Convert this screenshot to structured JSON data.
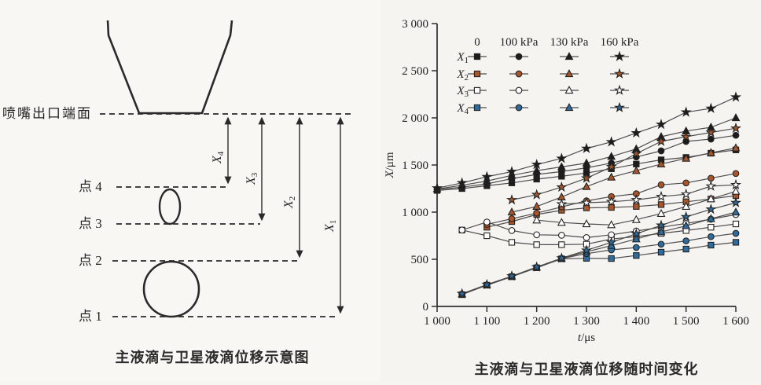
{
  "left_panel": {
    "nozzle_label": "喷嘴出口端面",
    "point_labels": [
      "点 4",
      "点 3",
      "点 2",
      "点 1"
    ],
    "arrows": [
      {
        "base": "X",
        "sub": "4"
      },
      {
        "base": "X",
        "sub": "3"
      },
      {
        "base": "X",
        "sub": "2"
      },
      {
        "base": "X",
        "sub": "1"
      }
    ],
    "caption": "主液滴与卫星液滴位移示意图"
  },
  "chart": {
    "ylabel": {
      "italic": "X",
      "rest": "/μm"
    },
    "xlabel": {
      "italic": "t",
      "rest": "/μs"
    },
    "y_ticks": [
      {
        "v": 0,
        "label": "0"
      },
      {
        "v": 500,
        "label": "500"
      },
      {
        "v": 1000,
        "label": "1 000"
      },
      {
        "v": 1500,
        "label": "1 500"
      },
      {
        "v": 2000,
        "label": "2 000"
      },
      {
        "v": 2500,
        "label": "2 500"
      },
      {
        "v": 3000,
        "label": "3 000"
      }
    ],
    "x_ticks": [
      {
        "v": 1000,
        "label": "1 000"
      },
      {
        "v": 1100,
        "label": "1 100"
      },
      {
        "v": 1200,
        "label": "1 200"
      },
      {
        "v": 1300,
        "label": "1 300"
      },
      {
        "v": 1400,
        "label": "1 400"
      },
      {
        "v": 1500,
        "label": "1 500"
      },
      {
        "v": 1600,
        "label": "1 600"
      }
    ],
    "legend": {
      "columns": [
        "0",
        "100 kPa",
        "130 kPa",
        "160 kPa"
      ],
      "rows": [
        {
          "base": "X",
          "sub": "1"
        },
        {
          "base": "X",
          "sub": "2"
        },
        {
          "base": "X",
          "sub": "3"
        },
        {
          "base": "X",
          "sub": "4"
        }
      ]
    },
    "colors": {
      "black": "#1c1c1c",
      "brown": "#a8552a",
      "open": "#ffffff",
      "blue": "#2e6b9e",
      "line": "#4d4d4d",
      "axis": "#2f2f2f",
      "marker_stroke": "#232323"
    },
    "caption": "主液滴与卫星液滴位移随时间变化"
  },
  "chart_data": {
    "type": "line",
    "title": "主液滴与卫星液滴位移随时间变化",
    "xlabel": "t/μs",
    "ylabel": "X/μm",
    "xlim": [
      1000,
      1600
    ],
    "ylim": [
      0,
      3000
    ],
    "grid": false,
    "legend_position": "top-left-inside",
    "x": [
      1000,
      1050,
      1100,
      1150,
      1200,
      1250,
      1300,
      1350,
      1400,
      1450,
      1500,
      1550,
      1600
    ],
    "series": [
      {
        "name": "X1 0",
        "family": "X1",
        "pressure": "0",
        "marker": "square",
        "color": "black",
        "values": [
          1230,
          1250,
          1280,
          1310,
          1350,
          1380,
          1415,
          1460,
          1510,
          1555,
          1580,
          1625,
          1660
        ]
      },
      {
        "name": "X1 100 kPa",
        "family": "X1",
        "pressure": "100 kPa",
        "marker": "circle",
        "color": "black",
        "values": [
          1240,
          1265,
          1300,
          1355,
          1400,
          1430,
          1470,
          1520,
          1585,
          1650,
          1750,
          1775,
          1815
        ]
      },
      {
        "name": "X1 130 kPa",
        "family": "X1",
        "pressure": "130 kPa",
        "marker": "triangle",
        "color": "black",
        "values": [
          1245,
          1285,
          1330,
          1390,
          1440,
          1480,
          1520,
          1590,
          1670,
          1800,
          1860,
          1900,
          2000
        ]
      },
      {
        "name": "X1 160 kPa",
        "family": "X1",
        "pressure": "160 kPa",
        "marker": "star",
        "color": "black",
        "values": [
          1255,
          1310,
          1375,
          1430,
          1505,
          1570,
          1675,
          1745,
          1840,
          1930,
          2060,
          2100,
          2220
        ]
      },
      {
        "name": "X2 0",
        "family": "X2",
        "pressure": "0",
        "marker": "square",
        "color": "brown",
        "values": [
          null,
          null,
          840,
          900,
          975,
          1020,
          1045,
          1050,
          1060,
          1080,
          1110,
          1140,
          1175
        ]
      },
      {
        "name": "X2 100 kPa",
        "family": "X2",
        "pressure": "100 kPa",
        "marker": "circle",
        "color": "brown",
        "values": [
          null,
          null,
          870,
          930,
          990,
          1055,
          1120,
          1165,
          1195,
          1290,
          1310,
          1360,
          1410
        ]
      },
      {
        "name": "X2 130 kPa",
        "family": "X2",
        "pressure": "130 kPa",
        "marker": "triangle",
        "color": "brown",
        "values": [
          null,
          null,
          null,
          1000,
          1060,
          1160,
          1270,
          1370,
          1440,
          1510,
          1570,
          1630,
          1680
        ]
      },
      {
        "name": "X2 160 kPa",
        "family": "X2",
        "pressure": "160 kPa",
        "marker": "star",
        "color": "brown",
        "values": [
          null,
          null,
          null,
          1130,
          1185,
          1265,
          1360,
          1480,
          1620,
          1750,
          1800,
          1845,
          1890
        ]
      },
      {
        "name": "X3 0",
        "family": "X3",
        "pressure": "0",
        "marker": "square",
        "color": "open",
        "values": [
          null,
          810,
          750,
          680,
          655,
          655,
          660,
          715,
          740,
          775,
          805,
          840,
          875
        ]
      },
      {
        "name": "X3 100 kPa",
        "family": "X3",
        "pressure": "100 kPa",
        "marker": "circle",
        "color": "open",
        "values": [
          null,
          810,
          895,
          805,
          760,
          755,
          730,
          760,
          800,
          840,
          880,
          925,
          975
        ]
      },
      {
        "name": "X3 130 kPa",
        "family": "X3",
        "pressure": "130 kPa",
        "marker": "triangle",
        "color": "open",
        "values": [
          null,
          null,
          null,
          null,
          915,
          890,
          875,
          865,
          920,
          985,
          1060,
          1140,
          1220
        ]
      },
      {
        "name": "X3 160 kPa",
        "family": "X3",
        "pressure": "160 kPa",
        "marker": "star",
        "color": "open",
        "values": [
          null,
          null,
          null,
          null,
          null,
          1085,
          1100,
          1110,
          1130,
          1165,
          1190,
          1275,
          1290
        ]
      },
      {
        "name": "X4 0",
        "family": "X4",
        "pressure": "0",
        "marker": "square",
        "color": "blue",
        "values": [
          null,
          125,
          225,
          315,
          410,
          505,
          510,
          508,
          540,
          575,
          608,
          650,
          680
        ]
      },
      {
        "name": "X4 100 kPa",
        "family": "X4",
        "pressure": "100 kPa",
        "marker": "circle",
        "color": "blue",
        "values": [
          null,
          130,
          228,
          318,
          412,
          508,
          560,
          600,
          625,
          660,
          695,
          740,
          775
        ]
      },
      {
        "name": "X4 130 kPa",
        "family": "X4",
        "pressure": "130 kPa",
        "marker": "triangle",
        "color": "blue",
        "values": [
          null,
          130,
          230,
          320,
          415,
          510,
          580,
          645,
          715,
          790,
          855,
          930,
          1000
        ]
      },
      {
        "name": "X4 160 kPa",
        "family": "X4",
        "pressure": "160 kPa",
        "marker": "star",
        "color": "blue",
        "values": [
          null,
          135,
          232,
          322,
          418,
          512,
          595,
          680,
          770,
          860,
          950,
          1030,
          1100
        ]
      }
    ]
  }
}
